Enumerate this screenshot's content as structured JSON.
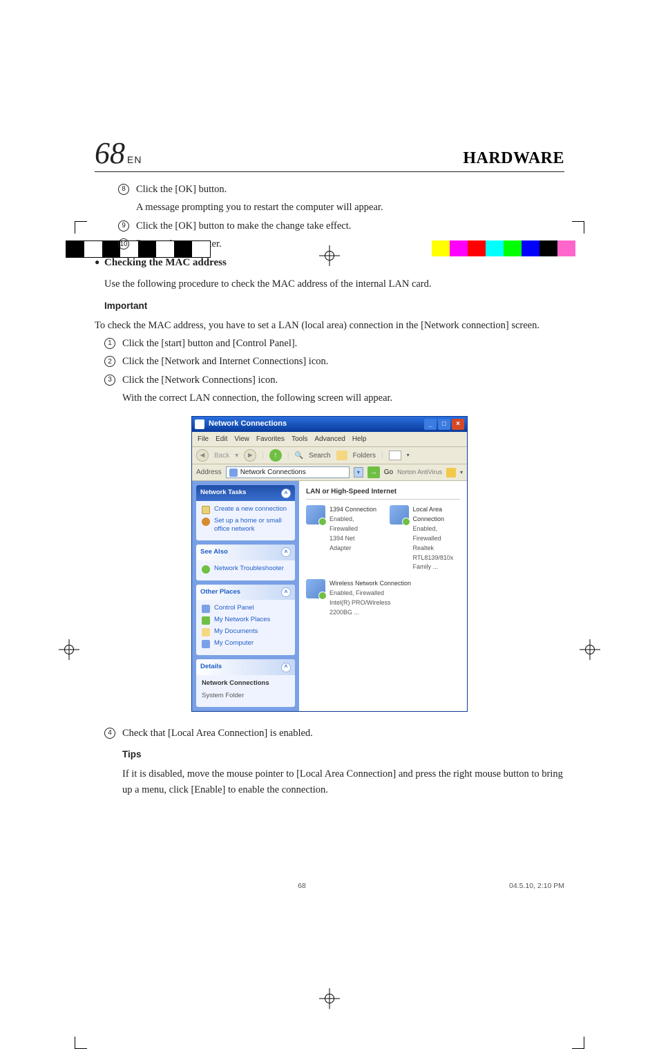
{
  "pageNumber": "68",
  "pageSuffix": "EN",
  "sectionTitle": "HARDWARE",
  "stepsA": [
    {
      "n": "8",
      "text": "Click the [OK] button."
    },
    {
      "n": "",
      "text": "A message prompting you to restart the computer will appear."
    },
    {
      "n": "9",
      "text": "Click the [OK] button to make the change take effect."
    },
    {
      "n": "10",
      "text": "Restart the computer."
    }
  ],
  "macHeading": "Checking the MAC address",
  "macIntro": "Use the following procedure to check the MAC address of the internal LAN card.",
  "importantLabel": "Important",
  "importantText": "To check the MAC address, you have to set a LAN (local area) connection in the [Network connection] screen.",
  "stepsB": [
    {
      "n": "1",
      "text": "Click the [start] button and [Control Panel]."
    },
    {
      "n": "2",
      "text": "Click the [Network and Internet Connections] icon."
    },
    {
      "n": "3",
      "text": "Click the [Network Connections] icon."
    }
  ],
  "stepsBNote": "With the correct LAN connection, the following screen will appear.",
  "step4": {
    "n": "4",
    "text": "Check that [Local Area Connection] is enabled."
  },
  "tipsLabel": "Tips",
  "tipsText": "If it is disabled, move the mouse pointer to [Local Area Connection] and press the right mouse button to bring up a menu, click [Enable] to enable the connection.",
  "footer": {
    "page": "68",
    "timestamp": "04.5.10, 2:10 PM"
  },
  "xp": {
    "title": "Network Connections",
    "menu": [
      "File",
      "Edit",
      "View",
      "Favorites",
      "Tools",
      "Advanced",
      "Help"
    ],
    "toolbar": {
      "back": "Back",
      "search": "Search",
      "folders": "Folders"
    },
    "address": {
      "label": "Address",
      "value": "Network Connections",
      "go": "Go",
      "norton": "Norton AntiVirus"
    },
    "side": {
      "tasks": {
        "title": "Network Tasks",
        "items": [
          "Create a new connection",
          "Set up a home or small office network"
        ]
      },
      "seeAlso": {
        "title": "See Also",
        "items": [
          "Network Troubleshooter"
        ]
      },
      "other": {
        "title": "Other Places",
        "items": [
          "Control Panel",
          "My Network Places",
          "My Documents",
          "My Computer"
        ]
      },
      "details": {
        "title": "Details",
        "name": "Network Connections",
        "type": "System Folder"
      }
    },
    "main": {
      "groupTitle": "LAN or High-Speed Internet",
      "conns": [
        {
          "name": "1394 Connection",
          "status": "Enabled, Firewalled",
          "device": "1394 Net Adapter"
        },
        {
          "name": "Local Area Connection",
          "status": "Enabled, Firewalled",
          "device": "Realtek RTL8139/810x Family ..."
        },
        {
          "name": "Wireless Network Connection",
          "status": "Enabled, Firewalled",
          "device": "Intel(R) PRO/Wireless 2200BG ..."
        }
      ]
    }
  },
  "printColorsLeft": [
    "#000000",
    "#ffffff",
    "#000000",
    "#ffffff",
    "#000000",
    "#ffffff",
    "#000000",
    "#ffffff"
  ],
  "printColorsRight": [
    "#ffffff",
    "#ffff00",
    "#ff00ff",
    "#ff0000",
    "#00ffff",
    "#00ff00",
    "#0000ff",
    "#000000",
    "#ff66cc",
    "#ffffff"
  ]
}
